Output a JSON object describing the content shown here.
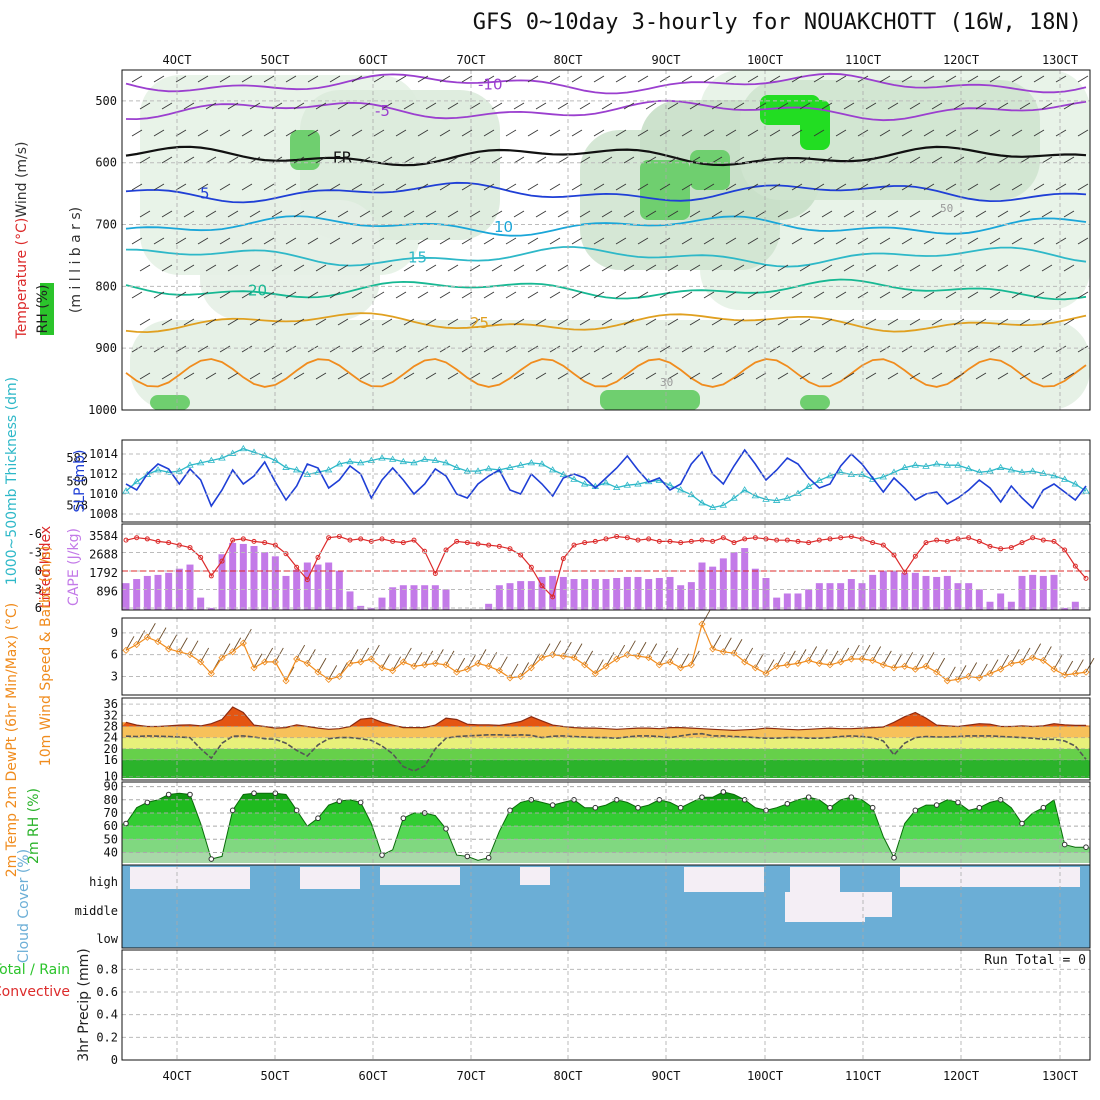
{
  "title": "GFS 0~10day 3-hourly for NOUAKCHOTT (16W, 18N)",
  "x_labels": [
    "4OCT",
    "5OCT",
    "6OCT",
    "7OCT",
    "8OCT",
    "9OCT",
    "10OCT",
    "11OCT",
    "12OCT",
    "13OCT"
  ],
  "colors": {
    "wind_barb": "#222222",
    "purple": "#9b3fcf",
    "blue": "#1f3fd6",
    "cyan": "#2eb8c8",
    "orange": "#f08c1e",
    "red": "#dc2b2b",
    "rh_green": "#2bc42b",
    "cloud": "#6baed6",
    "cape_bar": "#c37ae8",
    "dewpt": "#555555"
  },
  "chart_data": [
    {
      "panel": "cross-section",
      "type": "contour",
      "ylabel_lines": [
        "RH (%)",
        "Temperature (°C)",
        "Wind (m/s)"
      ],
      "y_unit_label": "(m i l l i b a r s)",
      "yticks": [
        "500",
        "600",
        "700",
        "800",
        "900",
        "1000"
      ],
      "ylim": [
        450,
        1000
      ],
      "contour_labels": [
        "-10",
        "-5",
        "FR",
        "5",
        "10",
        "15",
        "20",
        "25",
        "30",
        "50"
      ],
      "isotherms": [
        {
          "label": "-10",
          "level_mb": 472
        },
        {
          "label": "-5",
          "level_mb": 515
        },
        {
          "label": "FR",
          "level_mb": 590
        },
        {
          "label": "5",
          "level_mb": 648
        },
        {
          "label": "10",
          "level_mb": 702
        },
        {
          "label": "15",
          "level_mb": 752
        },
        {
          "label": "20",
          "level_mb": 805
        },
        {
          "label": "25",
          "level_mb": 858
        }
      ]
    },
    {
      "panel": "thickness-slp",
      "type": "line",
      "ylabel_left": "1000~500mb Thickness (dm)",
      "ylabel_right": "SLP (mb)",
      "yticks_left": [
        "578",
        "580",
        "582"
      ],
      "yticks_right": [
        "1008",
        "1010",
        "1012",
        "1014"
      ],
      "series": [
        {
          "name": "Thickness",
          "color": "#2eb8c8",
          "unit": "dm",
          "values": [
            579.2,
            580.0,
            580.6,
            581.0,
            580.8,
            580.9,
            581.4,
            581.6,
            581.8,
            582.0,
            582.4,
            582.8,
            582.5,
            582.2,
            581.8,
            581.2,
            581.0,
            580.6,
            580.8,
            581.0,
            581.5,
            581.7,
            581.6,
            581.8,
            582.0,
            581.9,
            581.7,
            581.6,
            581.9,
            581.8,
            581.6,
            581.2,
            580.9,
            580.9,
            581.1,
            581.0,
            581.2,
            581.4,
            581.6,
            581.5,
            581.0,
            580.6,
            580.2,
            579.8,
            579.6,
            579.9,
            579.5,
            579.7,
            579.8,
            580.0,
            580.1,
            579.7,
            579.3,
            578.9,
            578.2,
            577.8,
            578.0,
            578.6,
            579.3,
            578.8,
            578.5,
            578.4,
            578.6,
            579.0,
            579.6,
            580.1,
            580.5,
            580.8,
            580.6,
            580.6,
            580.2,
            580.4,
            580.8,
            581.2,
            581.4,
            581.3,
            581.5,
            581.4,
            581.4,
            581.1,
            580.8,
            580.9,
            581.2,
            581.0,
            580.8,
            580.9,
            580.7,
            580.5,
            580.2,
            579.8,
            579.2
          ]
        },
        {
          "name": "SLP",
          "color": "#1f3fd6",
          "unit": "mb",
          "values": [
            1011.0,
            1010.4,
            1012.0,
            1013.0,
            1012.5,
            1011.0,
            1012.5,
            1011.4,
            1008.8,
            1010.4,
            1012.4,
            1011.0,
            1011.8,
            1013.2,
            1011.2,
            1009.4,
            1010.8,
            1013.0,
            1012.6,
            1010.6,
            1011.4,
            1012.8,
            1012.0,
            1009.6,
            1011.4,
            1012.6,
            1011.4,
            1010.0,
            1011.0,
            1012.5,
            1011.8,
            1010.0,
            1009.6,
            1011.0,
            1011.8,
            1012.4,
            1010.4,
            1010.0,
            1012.0,
            1011.0,
            1009.8,
            1011.6,
            1012.0,
            1011.6,
            1010.6,
            1011.6,
            1012.6,
            1013.8,
            1012.4,
            1011.2,
            1011.6,
            1010.4,
            1011.0,
            1013.0,
            1014.2,
            1012.0,
            1011.0,
            1012.8,
            1014.4,
            1013.0,
            1011.4,
            1012.4,
            1013.6,
            1013.0,
            1011.6,
            1010.6,
            1011.0,
            1012.8,
            1014.0,
            1013.0,
            1011.6,
            1010.2,
            1011.6,
            1010.6,
            1009.4,
            1010.0,
            1010.2,
            1009.0,
            1009.6,
            1010.4,
            1011.4,
            1010.6,
            1009.2,
            1010.8,
            1009.6,
            1008.6,
            1010.4,
            1011.0,
            1010.2,
            1009.4,
            1010.8
          ]
        }
      ]
    },
    {
      "panel": "lifted-cape",
      "type": "bar+line",
      "ylabel_left": "Lifted Index",
      "ylabel_right": "CAPE (J/kg)",
      "yticks_left": [
        "-6",
        "-3",
        "0",
        "3",
        "6"
      ],
      "yticks_right": [
        "896",
        "1792",
        "2688",
        "3584"
      ],
      "series": [
        {
          "name": "Lifted Index",
          "color": "#dc2b2b",
          "values": [
            -5.0,
            -5.4,
            -5.2,
            -4.8,
            -4.6,
            -4.2,
            -3.8,
            -2.2,
            0.8,
            -1.6,
            -5.0,
            -5.2,
            -4.8,
            -4.6,
            -4.2,
            -2.8,
            -0.6,
            1.4,
            -2.2,
            -5.4,
            -5.6,
            -5.0,
            -5.2,
            -4.8,
            -5.2,
            -4.8,
            -4.6,
            -5.0,
            -3.2,
            0.4,
            -3.4,
            -4.8,
            -4.6,
            -4.4,
            -4.2,
            -4.0,
            -3.6,
            -2.6,
            -0.6,
            2.4,
            4.2,
            -2.0,
            -4.2,
            -4.6,
            -4.8,
            -5.2,
            -5.6,
            -5.4,
            -5.0,
            -5.2,
            -4.8,
            -4.8,
            -4.6,
            -4.8,
            -5.0,
            -4.8,
            -5.4,
            -4.6,
            -5.2,
            -5.4,
            -5.2,
            -5.0,
            -5.0,
            -4.8,
            -4.6,
            -5.0,
            -5.2,
            -5.4,
            -5.6,
            -5.2,
            -4.6,
            -4.2,
            -2.6,
            0.2,
            -2.4,
            -4.6,
            -5.0,
            -4.8,
            -5.2,
            -5.4,
            -4.8,
            -4.0,
            -3.6,
            -3.8,
            -4.6,
            -5.4,
            -5.0,
            -4.8,
            -3.4,
            -0.8,
            1.2
          ]
        },
        {
          "name": "CAPE",
          "color": "#c37ae8",
          "values": [
            1300,
            1500,
            1650,
            1700,
            1800,
            2000,
            2200,
            600,
            100,
            2700,
            3250,
            3200,
            3100,
            2800,
            2600,
            1650,
            1950,
            2300,
            2200,
            2300,
            1900,
            900,
            200,
            100,
            600,
            1100,
            1200,
            1200,
            1200,
            1200,
            1000,
            0,
            0,
            0,
            300,
            1200,
            1300,
            1400,
            1400,
            1600,
            1650,
            1600,
            1500,
            1500,
            1500,
            1500,
            1550,
            1600,
            1600,
            1500,
            1550,
            1600,
            1200,
            1350,
            2300,
            2100,
            2500,
            2800,
            3000,
            2000,
            1550,
            600,
            800,
            800,
            1000,
            1300,
            1300,
            1300,
            1500,
            1300,
            1700,
            1900,
            1900,
            1800,
            1800,
            1650,
            1600,
            1650,
            1300,
            1300,
            1000,
            400,
            800,
            400,
            1650,
            1700,
            1650,
            1700,
            100,
            400,
            0
          ]
        }
      ]
    },
    {
      "panel": "wind10m",
      "type": "line+barbs",
      "ylabel": "10m Wind Speed & Barbs (m/s)",
      "yticks": [
        "3",
        "6",
        "9"
      ],
      "series": [
        {
          "name": "10m Wind Speed",
          "color": "#f08c1e",
          "values": [
            6.6,
            7.4,
            8.4,
            7.8,
            6.8,
            6.4,
            6.0,
            5.0,
            3.4,
            5.6,
            6.4,
            7.6,
            4.2,
            5.0,
            5.0,
            2.4,
            5.4,
            4.8,
            3.6,
            2.6,
            3.0,
            4.8,
            5.0,
            5.4,
            4.2,
            3.8,
            5.0,
            4.4,
            4.6,
            4.8,
            4.6,
            3.6,
            4.0,
            4.8,
            4.4,
            3.8,
            2.8,
            3.0,
            4.2,
            5.6,
            6.0,
            5.8,
            5.6,
            4.6,
            3.4,
            4.4,
            5.4,
            6.0,
            5.8,
            5.6,
            4.6,
            5.0,
            4.2,
            4.6,
            10.2,
            6.8,
            6.4,
            6.2,
            5.0,
            4.2,
            3.4,
            4.4,
            4.6,
            4.8,
            5.2,
            4.8,
            4.6,
            5.0,
            5.4,
            5.4,
            5.2,
            4.6,
            4.2,
            4.4,
            4.0,
            4.4,
            3.6,
            2.4,
            2.6,
            3.0,
            2.8,
            3.4,
            4.0,
            4.8,
            5.0,
            5.6,
            5.2,
            4.0,
            3.2,
            3.4,
            3.6
          ]
        }
      ]
    },
    {
      "panel": "temp2m",
      "type": "area+line",
      "ylabel": "2m Temp 2m DewPt (6hr Min/Max) (°C)",
      "yticks": [
        "10",
        "16",
        "20",
        "24",
        "28",
        "32",
        "36"
      ],
      "series": [
        {
          "name": "2m Temp",
          "color": "#e05a10",
          "values": [
            29.5,
            28.5,
            28.0,
            28.0,
            28.2,
            28.5,
            28.6,
            28.2,
            29.0,
            30.5,
            35.0,
            33.0,
            28.5,
            28.0,
            27.4,
            27.6,
            28.6,
            28.0,
            27.4,
            27.0,
            27.2,
            28.0,
            30.6,
            31.0,
            29.5,
            28.5,
            27.6,
            27.6,
            27.6,
            28.5,
            31.0,
            30.5,
            28.8,
            28.6,
            28.6,
            28.4,
            29.0,
            29.8,
            31.5,
            30.0,
            28.5,
            28.0,
            27.6,
            27.4,
            27.4,
            27.2,
            27.0,
            27.2,
            27.4,
            27.4,
            27.2,
            27.6,
            27.6,
            27.4,
            27.2,
            27.0,
            26.8,
            26.6,
            26.8,
            27.0,
            27.4,
            27.2,
            27.0,
            26.8,
            27.0,
            27.2,
            27.4,
            27.2,
            27.2,
            27.4,
            27.6,
            27.8,
            29.5,
            31.5,
            33.0,
            31.0,
            28.5,
            28.2,
            28.0,
            28.5,
            29.0,
            28.8,
            28.0,
            28.0,
            28.2,
            28.0,
            28.2,
            29.0,
            28.6,
            28.4,
            28.4
          ]
        },
        {
          "name": "2m DewPt",
          "color": "#555555",
          "values": [
            24.5,
            24.4,
            24.6,
            24.5,
            24.4,
            24.2,
            24.0,
            20.0,
            16.6,
            22.0,
            24.5,
            24.6,
            24.2,
            23.6,
            23.4,
            22.0,
            19.4,
            17.4,
            21.4,
            23.6,
            24.0,
            24.0,
            23.6,
            23.0,
            21.0,
            18.2,
            13.6,
            12.0,
            13.8,
            20.0,
            23.8,
            24.4,
            24.6,
            24.8,
            25.0,
            25.0,
            24.8,
            25.0,
            24.8,
            24.0,
            24.5,
            24.6,
            24.4,
            24.2,
            24.0,
            24.0,
            23.8,
            24.2,
            24.6,
            24.6,
            24.4,
            24.0,
            24.6,
            25.2,
            25.4,
            24.6,
            24.6,
            24.4,
            24.2,
            24.0,
            23.8,
            23.8,
            24.0,
            24.0,
            23.8,
            23.8,
            24.0,
            24.4,
            24.6,
            24.4,
            24.0,
            22.8,
            17.8,
            22.0,
            24.0,
            24.4,
            24.2,
            24.2,
            24.4,
            24.6,
            24.6,
            24.6,
            24.4,
            24.2,
            24.0,
            23.8,
            23.4,
            23.4,
            22.8,
            21.0,
            16.2
          ]
        }
      ]
    },
    {
      "panel": "rh2m",
      "type": "area",
      "ylabel": "2m RH (%)",
      "yticks": [
        "40",
        "50",
        "60",
        "70",
        "80",
        "90"
      ],
      "series": [
        {
          "name": "2m RH",
          "color": "#2bc42b",
          "values": [
            62,
            74,
            78,
            80,
            84,
            85,
            84,
            62,
            35,
            37,
            72,
            84,
            85,
            85,
            85,
            84,
            72,
            60,
            66,
            76,
            79,
            80,
            78,
            62,
            38,
            42,
            66,
            70,
            70,
            68,
            58,
            38,
            37,
            34,
            36,
            56,
            72,
            78,
            80,
            78,
            76,
            78,
            80,
            74,
            74,
            76,
            80,
            78,
            74,
            76,
            80,
            78,
            74,
            78,
            82,
            82,
            86,
            84,
            80,
            74,
            72,
            74,
            77,
            80,
            82,
            80,
            74,
            80,
            82,
            80,
            74,
            52,
            36,
            62,
            72,
            76,
            76,
            80,
            78,
            72,
            74,
            78,
            80,
            74,
            62,
            70,
            74,
            80,
            46,
            44,
            44
          ]
        }
      ]
    },
    {
      "panel": "cloud-cover",
      "type": "heatmap",
      "ylabel": "Cloud Cover (%)",
      "yticks": [
        "high",
        "middle",
        "low"
      ]
    },
    {
      "panel": "precip",
      "type": "bar",
      "ylabel_lines": [
        "Total / Rain",
        "Convective",
        "3hr Precip (mm)"
      ],
      "yticks": [
        "0",
        "0.2",
        "0.4",
        "0.6",
        "0.8"
      ],
      "run_total": "Run Total = 0",
      "values": []
    }
  ]
}
